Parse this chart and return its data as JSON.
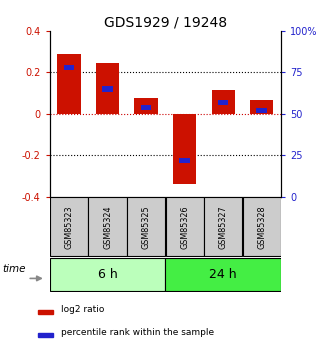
{
  "title": "GDS1929 / 19248",
  "samples": [
    "GSM85323",
    "GSM85324",
    "GSM85325",
    "GSM85326",
    "GSM85327",
    "GSM85328"
  ],
  "log2_ratio": [
    0.29,
    0.245,
    0.075,
    -0.34,
    0.115,
    0.065
  ],
  "percentile_rank": [
    0.78,
    0.65,
    0.54,
    0.22,
    0.57,
    0.52
  ],
  "ylim": [
    -0.4,
    0.4
  ],
  "yticks_left": [
    -0.4,
    -0.2,
    0.0,
    0.2,
    0.4
  ],
  "yticks_right": [
    0,
    25,
    50,
    75,
    100
  ],
  "groups": [
    {
      "label": "6 h",
      "samples": [
        0,
        1,
        2
      ],
      "color": "#bbffbb"
    },
    {
      "label": "24 h",
      "samples": [
        3,
        4,
        5
      ],
      "color": "#44ee44"
    }
  ],
  "bar_color_red": "#cc1100",
  "bar_color_blue": "#2222cc",
  "bar_width": 0.6,
  "percentile_bar_width": 0.28,
  "grid_color": "#000000",
  "zero_line_color": "#cc0000",
  "sample_box_color": "#cccccc",
  "background_color": "#ffffff",
  "title_fontsize": 10,
  "tick_fontsize": 7,
  "label_fontsize": 7,
  "group_label_fontsize": 9
}
